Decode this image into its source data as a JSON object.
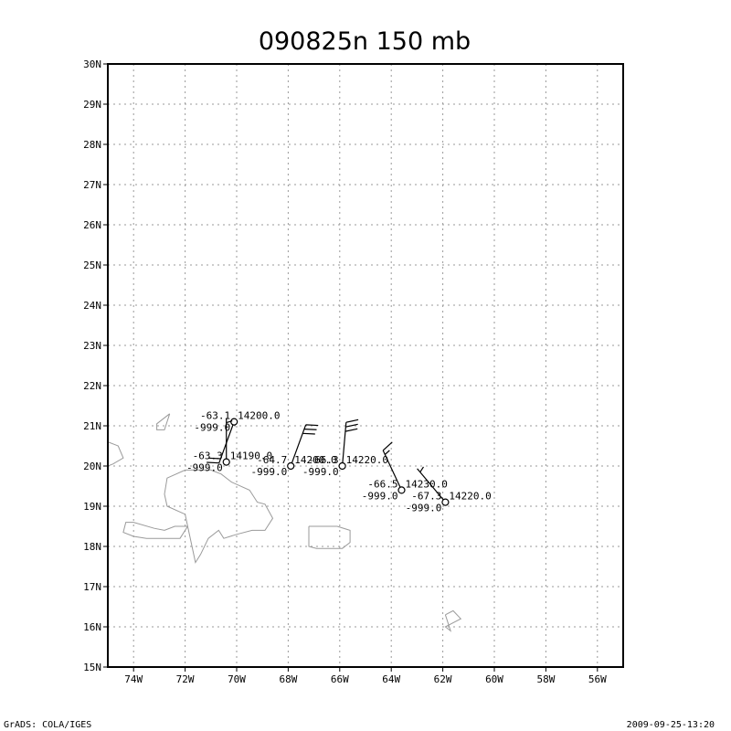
{
  "title": "090825n 150 mb",
  "footer_left": "GrADS: COLA/IGES",
  "footer_right": "2009-09-25-13:20",
  "map": {
    "lon_range": [
      -75,
      -55
    ],
    "lat_range": [
      15,
      30
    ],
    "x_ticks": [
      {
        "lon": -74,
        "label": "74W"
      },
      {
        "lon": -72,
        "label": "72W"
      },
      {
        "lon": -70,
        "label": "70W"
      },
      {
        "lon": -68,
        "label": "68W"
      },
      {
        "lon": -66,
        "label": "66W"
      },
      {
        "lon": -64,
        "label": "64W"
      },
      {
        "lon": -62,
        "label": "62W"
      },
      {
        "lon": -60,
        "label": "60W"
      },
      {
        "lon": -58,
        "label": "58W"
      },
      {
        "lon": -56,
        "label": "56W"
      }
    ],
    "y_ticks": [
      {
        "lat": 15,
        "label": "15N"
      },
      {
        "lat": 16,
        "label": "16N"
      },
      {
        "lat": 17,
        "label": "17N"
      },
      {
        "lat": 18,
        "label": "18N"
      },
      {
        "lat": 19,
        "label": "19N"
      },
      {
        "lat": 20,
        "label": "20N"
      },
      {
        "lat": 21,
        "label": "21N"
      },
      {
        "lat": 22,
        "label": "22N"
      },
      {
        "lat": 23,
        "label": "23N"
      },
      {
        "lat": 24,
        "label": "24N"
      },
      {
        "lat": 25,
        "label": "25N"
      },
      {
        "lat": 26,
        "label": "26N"
      },
      {
        "lat": 27,
        "label": "27N"
      },
      {
        "lat": 28,
        "label": "28N"
      },
      {
        "lat": 29,
        "label": "29N"
      },
      {
        "lat": 30,
        "label": "30N"
      }
    ],
    "grid": true,
    "coastlines": [
      [
        [
          -75,
          20.6
        ],
        [
          -74.6,
          20.5
        ],
        [
          -74.4,
          20.2
        ],
        [
          -74.8,
          20.05
        ],
        [
          -75,
          20.0
        ]
      ],
      [
        [
          -72.6,
          21.3
        ],
        [
          -72.8,
          20.9
        ],
        [
          -73.1,
          20.9
        ],
        [
          -73.1,
          21.05
        ],
        [
          -72.6,
          21.3
        ]
      ],
      [
        [
          -71.9,
          18.5
        ],
        [
          -72.0,
          18.8
        ],
        [
          -72.7,
          19.0
        ],
        [
          -72.8,
          19.3
        ],
        [
          -72.7,
          19.7
        ],
        [
          -72.0,
          19.9
        ],
        [
          -71.0,
          19.9
        ],
        [
          -70.6,
          19.8
        ],
        [
          -70.2,
          19.6
        ],
        [
          -69.5,
          19.4
        ],
        [
          -69.2,
          19.1
        ],
        [
          -68.9,
          19.05
        ],
        [
          -68.6,
          18.7
        ],
        [
          -68.9,
          18.4
        ],
        [
          -69.4,
          18.4
        ],
        [
          -70.0,
          18.3
        ],
        [
          -70.5,
          18.2
        ],
        [
          -70.7,
          18.4
        ],
        [
          -71.1,
          18.2
        ],
        [
          -71.4,
          17.8
        ],
        [
          -71.6,
          17.6
        ],
        [
          -71.9,
          18.5
        ]
      ],
      [
        [
          -71.9,
          18.5
        ],
        [
          -72.4,
          18.5
        ],
        [
          -72.8,
          18.4
        ],
        [
          -73.2,
          18.45
        ],
        [
          -74.0,
          18.6
        ],
        [
          -74.3,
          18.6
        ],
        [
          -74.4,
          18.35
        ],
        [
          -74.0,
          18.25
        ],
        [
          -73.5,
          18.2
        ],
        [
          -72.8,
          18.2
        ],
        [
          -72.2,
          18.2
        ],
        [
          -71.9,
          18.5
        ]
      ],
      [
        [
          -67.2,
          18.5
        ],
        [
          -67.0,
          18.5
        ],
        [
          -66.1,
          18.5
        ],
        [
          -65.6,
          18.4
        ],
        [
          -65.6,
          18.1
        ],
        [
          -65.9,
          17.95
        ],
        [
          -66.4,
          17.95
        ],
        [
          -66.9,
          17.95
        ],
        [
          -67.2,
          18.0
        ],
        [
          -67.2,
          18.5
        ]
      ],
      [
        [
          -61.9,
          16.3
        ],
        [
          -61.6,
          16.4
        ],
        [
          -61.3,
          16.2
        ],
        [
          -61.6,
          16.1
        ],
        [
          -61.9,
          16.0
        ],
        [
          -61.7,
          15.9
        ],
        [
          -61.9,
          16.3
        ]
      ]
    ]
  },
  "stations": [
    {
      "lon": -70.1,
      "lat": 21.1,
      "temp": "-63.1",
      "dewpt": "-999.0",
      "height": "14200.0",
      "wind_dir": 200,
      "wind_kt": 20
    },
    {
      "lon": -70.4,
      "lat": 20.1,
      "temp": "-63.3",
      "dewpt": "-999.0",
      "height": "14190.0",
      "wind_dir": 360,
      "wind_kt": 5
    },
    {
      "lon": -67.9,
      "lat": 20.0,
      "temp": "-64.7",
      "dewpt": "-999.0",
      "height": "14200.0",
      "wind_dir": 20,
      "wind_kt": 30
    },
    {
      "lon": -65.9,
      "lat": 20.0,
      "temp": "-66.3",
      "dewpt": "-999.0",
      "height": "14220.0",
      "wind_dir": 5,
      "wind_kt": 30
    },
    {
      "lon": -63.6,
      "lat": 19.4,
      "temp": "-66.5",
      "dewpt": "-999.0",
      "height": "14230.0",
      "wind_dir": 335,
      "wind_kt": 15
    },
    {
      "lon": -61.9,
      "lat": 19.1,
      "temp": "-67.3",
      "dewpt": "-999.0",
      "height": "14220.0",
      "wind_dir": 320,
      "wind_kt": 5
    }
  ]
}
